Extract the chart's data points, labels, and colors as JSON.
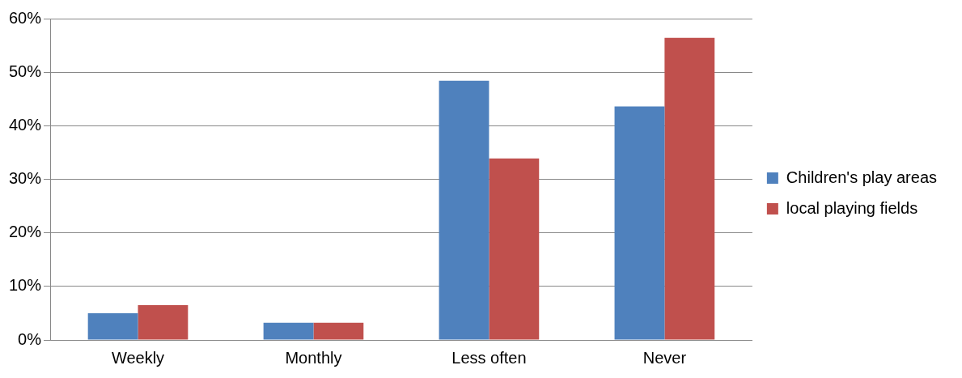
{
  "chart_data": {
    "type": "bar",
    "categories": [
      "Weekly",
      "Monthly",
      "Less often",
      "Never"
    ],
    "series": [
      {
        "name": "Children's play areas",
        "color": "#4f81bd",
        "values": [
          5.0,
          3.2,
          48.4,
          43.6
        ]
      },
      {
        "name": "local playing fields",
        "color": "#c0504d",
        "values": [
          6.5,
          3.2,
          33.9,
          56.4
        ]
      }
    ],
    "ylim": [
      0,
      60
    ],
    "yticks": [
      {
        "value": 0,
        "label": "0%"
      },
      {
        "value": 10,
        "label": "10%"
      },
      {
        "value": 20,
        "label": "20%"
      },
      {
        "value": 30,
        "label": "30%"
      },
      {
        "value": 40,
        "label": "40%"
      },
      {
        "value": 50,
        "label": "50%"
      },
      {
        "value": 60,
        "label": "60%"
      }
    ],
    "grid": "y",
    "legend": "right"
  }
}
